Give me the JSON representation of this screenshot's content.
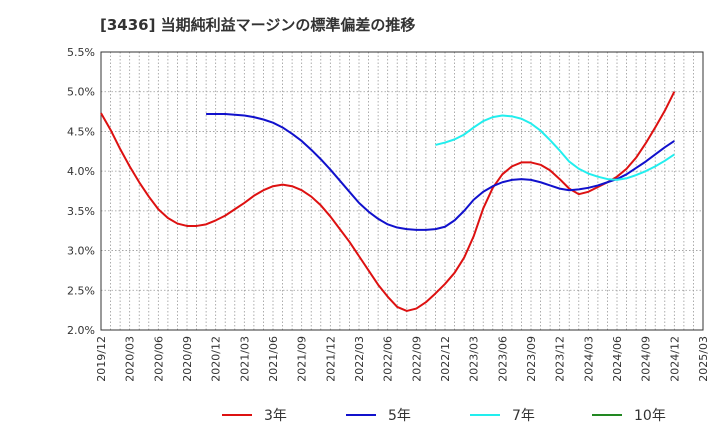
{
  "chart_data": {
    "type": "line",
    "title": "[3436]  当期純利益マージンの標準偏差の推移",
    "xlabel": "",
    "ylabel": "",
    "x_ticks": [
      "2019/12",
      "2020/03",
      "2020/06",
      "2020/09",
      "2020/12",
      "2021/03",
      "2021/06",
      "2021/09",
      "2021/12",
      "2022/03",
      "2022/06",
      "2022/09",
      "2022/12",
      "2023/03",
      "2023/06",
      "2023/09",
      "2023/12",
      "2024/03",
      "2024/06",
      "2024/09",
      "2024/12",
      "2025/03"
    ],
    "y_ticks": [
      "2.0%",
      "2.5%",
      "3.0%",
      "3.5%",
      "4.0%",
      "4.5%",
      "5.0%",
      "5.5%"
    ],
    "ylim": [
      2.0,
      5.5
    ],
    "grid": true,
    "legend_position": "bottom",
    "series": [
      {
        "name": "3年",
        "color": "#dd1111",
        "x": [
          "2019/12",
          "2020/01",
          "2020/02",
          "2020/03",
          "2020/04",
          "2020/05",
          "2020/06",
          "2020/07",
          "2020/08",
          "2020/09",
          "2020/10",
          "2020/11",
          "2020/12",
          "2021/01",
          "2021/02",
          "2021/03",
          "2021/04",
          "2021/05",
          "2021/06",
          "2021/07",
          "2021/08",
          "2021/09",
          "2021/10",
          "2021/11",
          "2021/12",
          "2022/01",
          "2022/02",
          "2022/03",
          "2022/04",
          "2022/05",
          "2022/06",
          "2022/07",
          "2022/08",
          "2022/09",
          "2022/10",
          "2022/11",
          "2022/12",
          "2023/01",
          "2023/02",
          "2023/03",
          "2023/04",
          "2023/05",
          "2023/06",
          "2023/07",
          "2023/08",
          "2023/09",
          "2023/10",
          "2023/11",
          "2023/12",
          "2024/01",
          "2024/02",
          "2024/03",
          "2024/04",
          "2024/05",
          "2024/06",
          "2024/07",
          "2024/08",
          "2024/09",
          "2024/10",
          "2024/11",
          "2024/12"
        ],
        "values": [
          4.73,
          4.52,
          4.28,
          4.06,
          3.86,
          3.68,
          3.52,
          3.41,
          3.34,
          3.31,
          3.31,
          3.33,
          3.38,
          3.44,
          3.52,
          3.6,
          3.69,
          3.76,
          3.81,
          3.83,
          3.81,
          3.76,
          3.68,
          3.57,
          3.43,
          3.27,
          3.11,
          2.93,
          2.75,
          2.57,
          2.42,
          2.29,
          2.24,
          2.27,
          2.35,
          2.46,
          2.58,
          2.72,
          2.91,
          3.18,
          3.53,
          3.79,
          3.96,
          4.06,
          4.11,
          4.11,
          4.08,
          4.01,
          3.9,
          3.78,
          3.71,
          3.74,
          3.8,
          3.86,
          3.93,
          4.03,
          4.17,
          4.35,
          4.55,
          4.76,
          5.0
        ]
      },
      {
        "name": "5年",
        "color": "#1111cc",
        "x": [
          "2020/11",
          "2020/12",
          "2021/01",
          "2021/02",
          "2021/03",
          "2021/04",
          "2021/05",
          "2021/06",
          "2021/07",
          "2021/08",
          "2021/09",
          "2021/10",
          "2021/11",
          "2021/12",
          "2022/01",
          "2022/02",
          "2022/03",
          "2022/04",
          "2022/05",
          "2022/06",
          "2022/07",
          "2022/08",
          "2022/09",
          "2022/10",
          "2022/11",
          "2022/12",
          "2023/01",
          "2023/02",
          "2023/03",
          "2023/04",
          "2023/05",
          "2023/06",
          "2023/07",
          "2023/08",
          "2023/09",
          "2023/10",
          "2023/11",
          "2023/12",
          "2024/01",
          "2024/02",
          "2024/03",
          "2024/04",
          "2024/05",
          "2024/06",
          "2024/07",
          "2024/08",
          "2024/09",
          "2024/10",
          "2024/11",
          "2024/12"
        ],
        "values": [
          4.72,
          4.72,
          4.72,
          4.71,
          4.7,
          4.68,
          4.65,
          4.61,
          4.55,
          4.47,
          4.38,
          4.27,
          4.15,
          4.02,
          3.88,
          3.74,
          3.6,
          3.49,
          3.4,
          3.33,
          3.29,
          3.27,
          3.26,
          3.26,
          3.27,
          3.3,
          3.38,
          3.5,
          3.64,
          3.74,
          3.81,
          3.86,
          3.89,
          3.9,
          3.89,
          3.86,
          3.82,
          3.78,
          3.76,
          3.77,
          3.79,
          3.82,
          3.86,
          3.9,
          3.96,
          4.04,
          4.12,
          4.21,
          4.3,
          4.38
        ]
      },
      {
        "name": "7年",
        "color": "#22eeee",
        "x": [
          "2022/11",
          "2022/12",
          "2023/01",
          "2023/02",
          "2023/03",
          "2023/04",
          "2023/05",
          "2023/06",
          "2023/07",
          "2023/08",
          "2023/09",
          "2023/10",
          "2023/11",
          "2023/12",
          "2024/01",
          "2024/02",
          "2024/03",
          "2024/04",
          "2024/05",
          "2024/06",
          "2024/07",
          "2024/08",
          "2024/09",
          "2024/10",
          "2024/11",
          "2024/12"
        ],
        "values": [
          4.33,
          4.36,
          4.4,
          4.46,
          4.55,
          4.63,
          4.68,
          4.7,
          4.69,
          4.66,
          4.6,
          4.51,
          4.39,
          4.26,
          4.12,
          4.03,
          3.97,
          3.93,
          3.9,
          3.89,
          3.91,
          3.95,
          4.0,
          4.06,
          4.13,
          4.21
        ]
      },
      {
        "name": "10年",
        "color": "#228822",
        "x": [],
        "values": []
      }
    ]
  }
}
